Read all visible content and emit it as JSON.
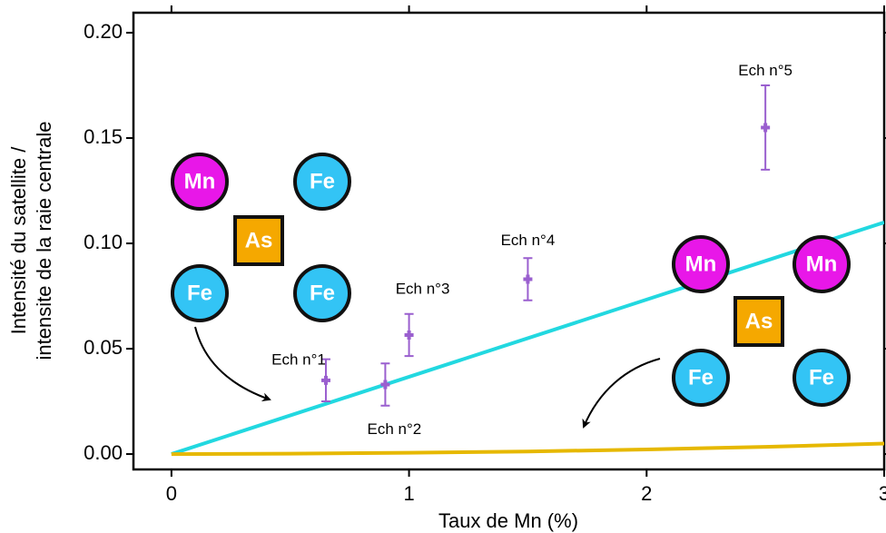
{
  "chart_data": {
    "type": "scatter",
    "xlabel": "Taux de Mn (%)",
    "ylabel": [
      "Intensité du satellite /",
      "intensite de la raie centrale"
    ],
    "xlim": [
      -0.16,
      3.0
    ],
    "ylim": [
      -0.0073,
      0.2095
    ],
    "xticks": [
      0,
      1,
      2,
      3
    ],
    "yticks": [
      {
        "value": 0,
        "label": "0.00"
      },
      {
        "value": 0.05,
        "label": "0.05"
      },
      {
        "value": 0.1,
        "label": "0.10"
      },
      {
        "value": 0.15,
        "label": "0.15"
      },
      {
        "value": 0.2,
        "label": "0.20"
      }
    ],
    "series": [
      {
        "type": "line",
        "color": "#22d8e0",
        "x": [
          0,
          3
        ],
        "values": [
          0,
          0.11
        ]
      },
      {
        "type": "line",
        "color": "#e6b800",
        "x": [
          0,
          0.5,
          1,
          1.5,
          2,
          2.5,
          3
        ],
        "values": [
          0,
          0.0002,
          0.0006,
          0.0012,
          0.0022,
          0.0034,
          0.005
        ]
      },
      {
        "type": "scatter",
        "color": "#9a5fcf",
        "x": [
          0.65,
          0.9,
          1.0,
          1.5,
          2.5
        ],
        "values": [
          0.035,
          0.033,
          0.0565,
          0.083,
          0.155
        ],
        "errors": [
          0.01,
          0.01,
          0.01,
          0.01,
          0.02
        ],
        "point_labels": [
          "Ech n°1",
          "Ech n°2",
          "Ech n°3",
          "Ech n°4",
          "Ech n°5"
        ]
      }
    ],
    "diagrams": [
      {
        "atoms": [
          "Mn",
          "Fe",
          "As",
          "Fe",
          "Fe"
        ]
      },
      {
        "atoms": [
          "Mn",
          "Mn",
          "As",
          "Fe",
          "Fe"
        ]
      }
    ]
  }
}
